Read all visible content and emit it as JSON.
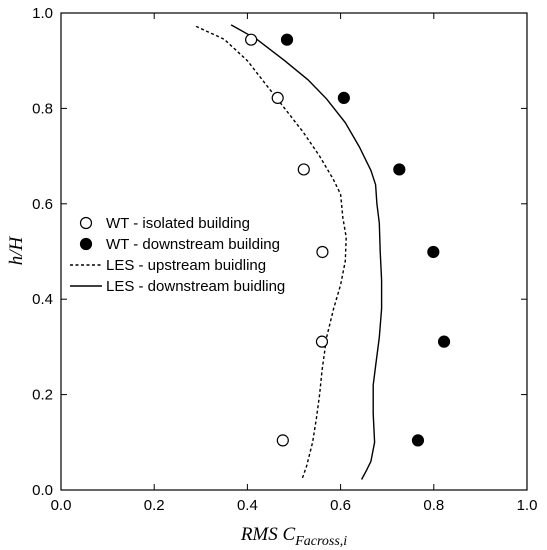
{
  "chart_data": {
    "type": "scatter",
    "xlabel_main": "RMS C",
    "xlabel_sub": "Facross,i",
    "ylabel": "h/H",
    "xlim": [
      0.0,
      1.0
    ],
    "ylim": [
      0.0,
      1.0
    ],
    "x_ticks": [
      "0.0",
      "0.2",
      "0.4",
      "0.6",
      "0.8",
      "1.0"
    ],
    "y_ticks": [
      "0.0",
      "0.2",
      "0.4",
      "0.6",
      "0.8",
      "1.0"
    ],
    "grid": false,
    "legend_position": "middle-left",
    "series": [
      {
        "name": "WT - isolated building",
        "kind": "marker-open",
        "color": "#000000",
        "points": [
          {
            "x": 0.408,
            "y": 0.944
          },
          {
            "x": 0.465,
            "y": 0.822
          },
          {
            "x": 0.521,
            "y": 0.672
          },
          {
            "x": 0.561,
            "y": 0.499
          },
          {
            "x": 0.56,
            "y": 0.311
          },
          {
            "x": 0.476,
            "y": 0.104
          }
        ]
      },
      {
        "name": "WT - downstream building",
        "kind": "marker-filled",
        "color": "#000000",
        "points": [
          {
            "x": 0.485,
            "y": 0.944
          },
          {
            "x": 0.607,
            "y": 0.822
          },
          {
            "x": 0.726,
            "y": 0.672
          },
          {
            "x": 0.799,
            "y": 0.499
          },
          {
            "x": 0.822,
            "y": 0.311
          },
          {
            "x": 0.766,
            "y": 0.104
          }
        ]
      },
      {
        "name": "LES - upstream buidling",
        "kind": "line-dashed",
        "color": "#000000",
        "points": [
          {
            "x": 0.29,
            "y": 0.972
          },
          {
            "x": 0.35,
            "y": 0.945
          },
          {
            "x": 0.4,
            "y": 0.9
          },
          {
            "x": 0.44,
            "y": 0.85
          },
          {
            "x": 0.48,
            "y": 0.8
          },
          {
            "x": 0.52,
            "y": 0.75
          },
          {
            "x": 0.555,
            "y": 0.7
          },
          {
            "x": 0.585,
            "y": 0.65
          },
          {
            "x": 0.6,
            "y": 0.62
          },
          {
            "x": 0.605,
            "y": 0.57
          },
          {
            "x": 0.612,
            "y": 0.53
          },
          {
            "x": 0.61,
            "y": 0.48
          },
          {
            "x": 0.6,
            "y": 0.43
          },
          {
            "x": 0.585,
            "y": 0.38
          },
          {
            "x": 0.57,
            "y": 0.32
          },
          {
            "x": 0.56,
            "y": 0.25
          },
          {
            "x": 0.555,
            "y": 0.2
          },
          {
            "x": 0.548,
            "y": 0.15
          },
          {
            "x": 0.54,
            "y": 0.1
          },
          {
            "x": 0.527,
            "y": 0.05
          },
          {
            "x": 0.518,
            "y": 0.025
          }
        ]
      },
      {
        "name": "LES - downstream buidling",
        "kind": "line-solid",
        "color": "#000000",
        "points": [
          {
            "x": 0.365,
            "y": 0.975
          },
          {
            "x": 0.42,
            "y": 0.945
          },
          {
            "x": 0.48,
            "y": 0.9
          },
          {
            "x": 0.53,
            "y": 0.86
          },
          {
            "x": 0.57,
            "y": 0.82
          },
          {
            "x": 0.61,
            "y": 0.77
          },
          {
            "x": 0.64,
            "y": 0.72
          },
          {
            "x": 0.665,
            "y": 0.67
          },
          {
            "x": 0.675,
            "y": 0.64
          },
          {
            "x": 0.678,
            "y": 0.6
          },
          {
            "x": 0.683,
            "y": 0.56
          },
          {
            "x": 0.685,
            "y": 0.5
          },
          {
            "x": 0.688,
            "y": 0.44
          },
          {
            "x": 0.688,
            "y": 0.38
          },
          {
            "x": 0.683,
            "y": 0.32
          },
          {
            "x": 0.675,
            "y": 0.26
          },
          {
            "x": 0.67,
            "y": 0.22
          },
          {
            "x": 0.67,
            "y": 0.16
          },
          {
            "x": 0.673,
            "y": 0.1
          },
          {
            "x": 0.665,
            "y": 0.06
          },
          {
            "x": 0.655,
            "y": 0.04
          },
          {
            "x": 0.645,
            "y": 0.022
          }
        ]
      }
    ]
  }
}
